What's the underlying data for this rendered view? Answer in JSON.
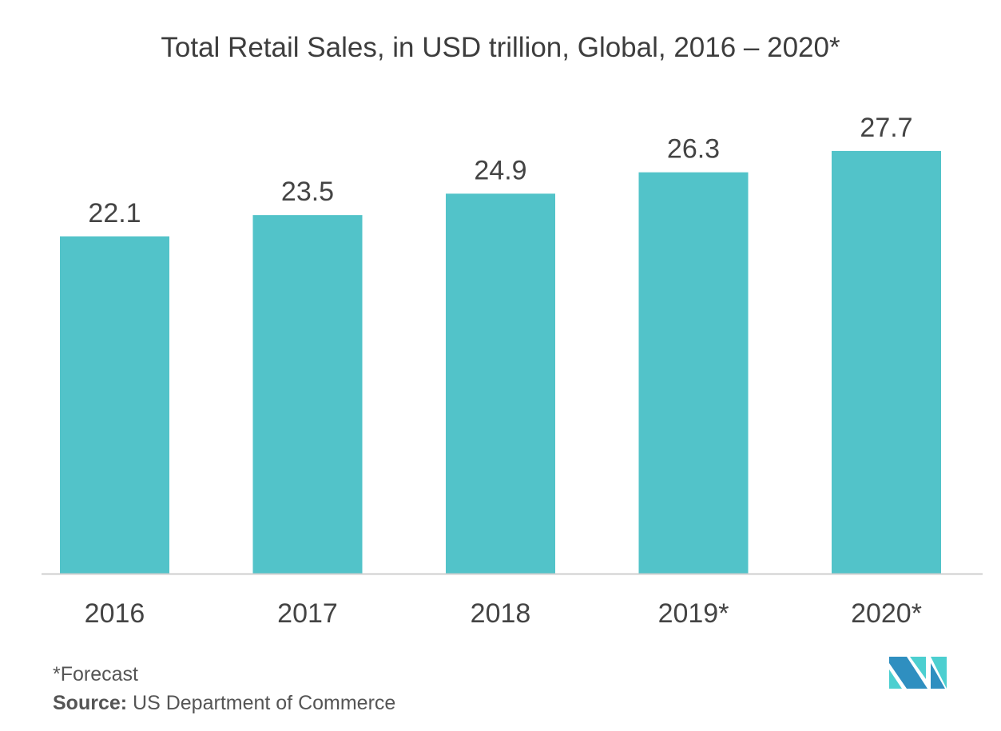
{
  "chart_data": {
    "type": "bar",
    "title": "Total Retail Sales, in USD trillion, Global, 2016 – 2020*",
    "categories": [
      "2016",
      "2017",
      "2018",
      "2019*",
      "2020*"
    ],
    "values": [
      22.1,
      23.5,
      24.9,
      26.3,
      27.7
    ],
    "value_labels": [
      "22.1",
      "23.5",
      "24.9",
      "26.3",
      "27.7"
    ],
    "xlabel": "",
    "ylabel": "",
    "ylim": [
      0,
      30
    ],
    "grid": false,
    "bar_color": "#52c3c9"
  },
  "footer": {
    "note": "*Forecast",
    "source_label": "Source:",
    "source_text": "US Department of Commerce"
  },
  "logo": {
    "text": "MN",
    "colors": [
      "#2f8fc0",
      "#4ccfd0"
    ]
  }
}
